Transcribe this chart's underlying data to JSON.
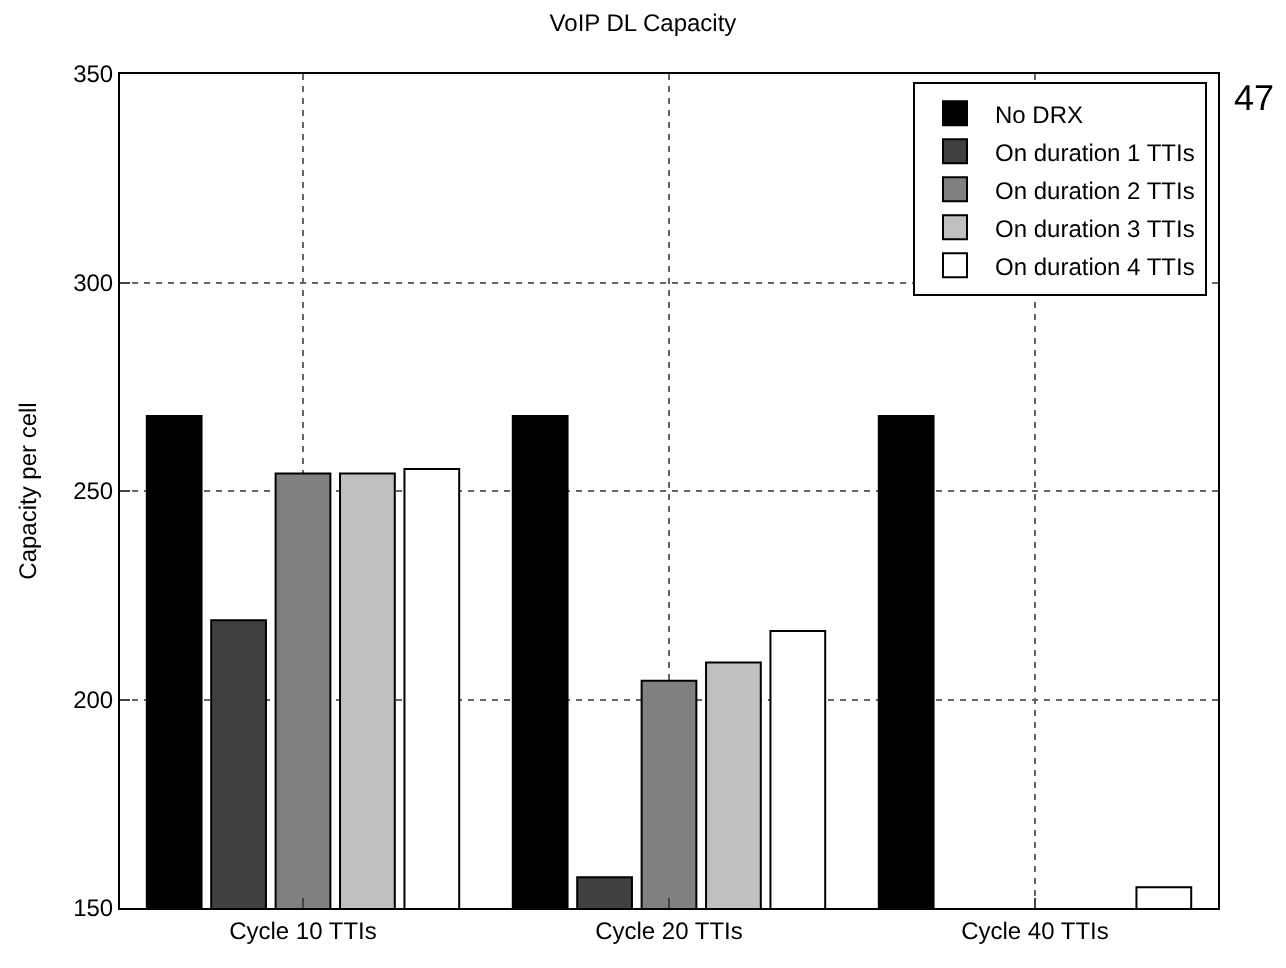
{
  "chart_data": {
    "type": "bar",
    "title": "VoIP DL Capacity",
    "ylabel": "Capacity per cell",
    "categories": [
      "Cycle 10 TTIs",
      "Cycle 20 TTIs",
      "Cycle 40 TTIs"
    ],
    "series": [
      {
        "name": "No DRX",
        "color": "#000000",
        "values": [
          268,
          268,
          268
        ]
      },
      {
        "name": "On duration 1 TTIs",
        "color": "#404040",
        "values": [
          219,
          157.4,
          null
        ]
      },
      {
        "name": "On duration 2 TTIs",
        "color": "#808080",
        "values": [
          254.2,
          204.5,
          null
        ]
      },
      {
        "name": "On duration 3 TTIs",
        "color": "#c0c0c0",
        "values": [
          254.2,
          208.9,
          null
        ]
      },
      {
        "name": "On duration 4 TTIs",
        "color": "#ffffff",
        "values": [
          255.3,
          216.4,
          155
        ]
      }
    ],
    "ylim": [
      150,
      350
    ],
    "yticks": [
      150,
      200,
      250,
      300,
      350
    ],
    "grid": true,
    "legend": "top right",
    "annotations": [
      "47"
    ]
  }
}
